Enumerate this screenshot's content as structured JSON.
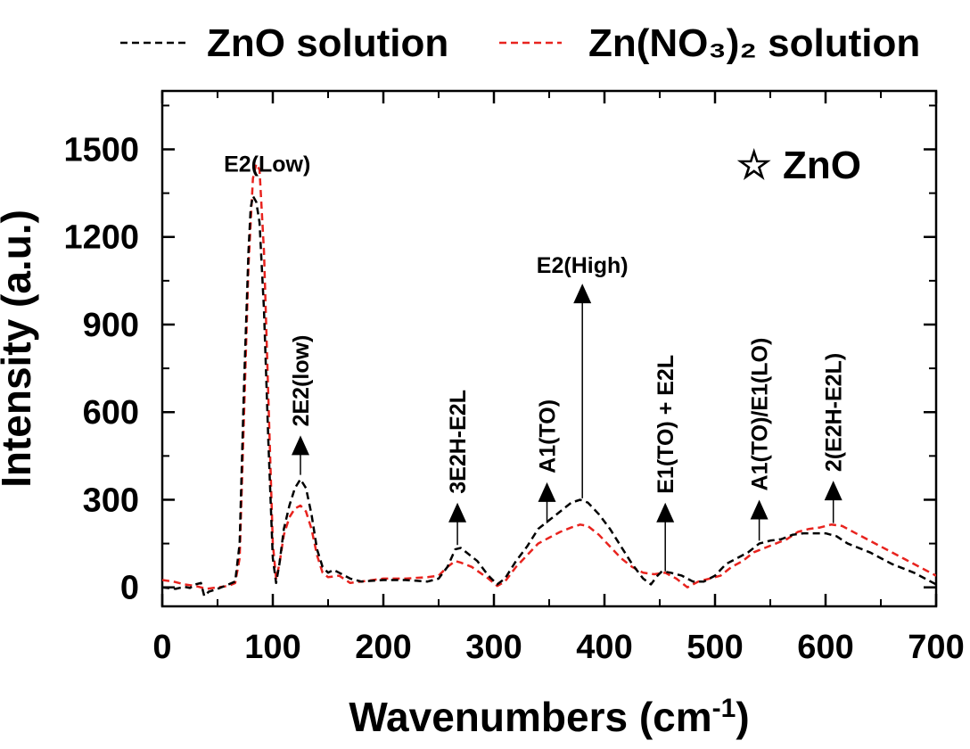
{
  "chart_data": {
    "type": "line",
    "xlabel": "Wavenumbers (cm",
    "xlabel_sup": "-1",
    "xlabel_end": ")",
    "ylabel": "Intensity (a.u.)",
    "xlim": [
      0,
      700
    ],
    "ylim": [
      -65,
      1700
    ],
    "x_ticks": [
      0,
      100,
      200,
      300,
      400,
      500,
      600,
      700
    ],
    "y_ticks": [
      0,
      300,
      600,
      900,
      1200,
      1500
    ],
    "x_tick_labels": [
      "0",
      "100",
      "200",
      "300",
      "400",
      "500",
      "600",
      "700"
    ],
    "y_tick_labels": [
      "0",
      "300",
      "600",
      "900",
      "1200",
      "1500"
    ],
    "legend_position": "top",
    "series": [
      {
        "name": "ZnO solution",
        "color": "#000000",
        "style": "dashed",
        "points": [
          [
            0,
            0
          ],
          [
            12,
            -5
          ],
          [
            20,
            2
          ],
          [
            25,
            -2
          ],
          [
            30,
            10
          ],
          [
            35,
            15
          ],
          [
            38,
            -30
          ],
          [
            42,
            -15
          ],
          [
            50,
            -5
          ],
          [
            60,
            10
          ],
          [
            66,
            20
          ],
          [
            70,
            150
          ],
          [
            74,
            700
          ],
          [
            78,
            1150
          ],
          [
            80,
            1300
          ],
          [
            82,
            1340
          ],
          [
            85,
            1320
          ],
          [
            88,
            1250
          ],
          [
            92,
            950
          ],
          [
            96,
            500
          ],
          [
            100,
            100
          ],
          [
            103,
            15
          ],
          [
            106,
            80
          ],
          [
            110,
            200
          ],
          [
            115,
            280
          ],
          [
            120,
            340
          ],
          [
            125,
            370
          ],
          [
            130,
            340
          ],
          [
            135,
            250
          ],
          [
            140,
            130
          ],
          [
            145,
            70
          ],
          [
            150,
            50
          ],
          [
            155,
            60
          ],
          [
            160,
            50
          ],
          [
            170,
            30
          ],
          [
            180,
            20
          ],
          [
            200,
            25
          ],
          [
            220,
            25
          ],
          [
            240,
            20
          ],
          [
            250,
            30
          ],
          [
            258,
            70
          ],
          [
            265,
            130
          ],
          [
            270,
            135
          ],
          [
            275,
            120
          ],
          [
            285,
            90
          ],
          [
            295,
            40
          ],
          [
            303,
            10
          ],
          [
            310,
            30
          ],
          [
            320,
            90
          ],
          [
            330,
            140
          ],
          [
            340,
            200
          ],
          [
            350,
            230
          ],
          [
            360,
            260
          ],
          [
            370,
            290
          ],
          [
            378,
            300
          ],
          [
            385,
            290
          ],
          [
            395,
            250
          ],
          [
            405,
            200
          ],
          [
            415,
            140
          ],
          [
            425,
            80
          ],
          [
            435,
            30
          ],
          [
            442,
            10
          ],
          [
            448,
            40
          ],
          [
            452,
            55
          ],
          [
            460,
            50
          ],
          [
            470,
            40
          ],
          [
            480,
            20
          ],
          [
            490,
            20
          ],
          [
            500,
            40
          ],
          [
            510,
            80
          ],
          [
            520,
            100
          ],
          [
            530,
            120
          ],
          [
            540,
            150
          ],
          [
            550,
            160
          ],
          [
            560,
            165
          ],
          [
            570,
            180
          ],
          [
            580,
            185
          ],
          [
            590,
            185
          ],
          [
            600,
            185
          ],
          [
            610,
            175
          ],
          [
            620,
            150
          ],
          [
            640,
            120
          ],
          [
            660,
            80
          ],
          [
            680,
            50
          ],
          [
            700,
            10
          ]
        ]
      },
      {
        "name": "Zn(NO₃)₂ solution",
        "color": "#e8231e",
        "style": "dashed",
        "points": [
          [
            0,
            25
          ],
          [
            10,
            20
          ],
          [
            20,
            10
          ],
          [
            30,
            5
          ],
          [
            40,
            -5
          ],
          [
            50,
            0
          ],
          [
            60,
            5
          ],
          [
            66,
            15
          ],
          [
            70,
            100
          ],
          [
            74,
            600
          ],
          [
            78,
            1100
          ],
          [
            82,
            1400
          ],
          [
            85,
            1450
          ],
          [
            88,
            1430
          ],
          [
            92,
            1150
          ],
          [
            96,
            650
          ],
          [
            100,
            150
          ],
          [
            103,
            30
          ],
          [
            106,
            80
          ],
          [
            110,
            180
          ],
          [
            115,
            240
          ],
          [
            120,
            270
          ],
          [
            125,
            280
          ],
          [
            130,
            260
          ],
          [
            135,
            200
          ],
          [
            140,
            110
          ],
          [
            145,
            50
          ],
          [
            150,
            35
          ],
          [
            160,
            40
          ],
          [
            170,
            15
          ],
          [
            180,
            20
          ],
          [
            200,
            30
          ],
          [
            220,
            30
          ],
          [
            240,
            35
          ],
          [
            250,
            40
          ],
          [
            258,
            70
          ],
          [
            265,
            90
          ],
          [
            270,
            85
          ],
          [
            280,
            70
          ],
          [
            295,
            30
          ],
          [
            303,
            5
          ],
          [
            310,
            20
          ],
          [
            320,
            70
          ],
          [
            330,
            110
          ],
          [
            340,
            150
          ],
          [
            350,
            170
          ],
          [
            360,
            190
          ],
          [
            370,
            205
          ],
          [
            378,
            215
          ],
          [
            385,
            210
          ],
          [
            395,
            180
          ],
          [
            405,
            140
          ],
          [
            415,
            100
          ],
          [
            425,
            70
          ],
          [
            435,
            50
          ],
          [
            445,
            45
          ],
          [
            455,
            50
          ],
          [
            465,
            30
          ],
          [
            475,
            0
          ],
          [
            485,
            20
          ],
          [
            495,
            30
          ],
          [
            505,
            40
          ],
          [
            515,
            70
          ],
          [
            525,
            90
          ],
          [
            535,
            120
          ],
          [
            545,
            135
          ],
          [
            555,
            150
          ],
          [
            565,
            165
          ],
          [
            575,
            190
          ],
          [
            585,
            200
          ],
          [
            595,
            205
          ],
          [
            605,
            215
          ],
          [
            615,
            210
          ],
          [
            630,
            180
          ],
          [
            650,
            140
          ],
          [
            670,
            100
          ],
          [
            690,
            60
          ],
          [
            700,
            40
          ]
        ]
      }
    ],
    "annotations": [
      {
        "label": "E2(Low)",
        "x": 82,
        "y": 1430,
        "rotated": false,
        "arrow": false
      },
      {
        "label": "2E2(low)",
        "x": 125,
        "rotated": true,
        "arrow": true,
        "arrow_top": 520,
        "arrow_bottom": 385
      },
      {
        "label": "3E2H-E2L",
        "x": 267,
        "rotated": true,
        "arrow": true,
        "arrow_top": 290,
        "arrow_bottom": 145
      },
      {
        "label": "A1(TO)",
        "x": 348,
        "rotated": true,
        "arrow": true,
        "arrow_top": 360,
        "arrow_bottom": 220
      },
      {
        "label": "E2(High)",
        "x": 380,
        "rotated": false,
        "arrow": true,
        "arrow_top": 1040,
        "arrow_bottom": 305
      },
      {
        "label": "E1(TO) + E2L",
        "x": 455,
        "rotated": true,
        "arrow": true,
        "arrow_top": 290,
        "arrow_bottom": 55
      },
      {
        "label": "A1(TO)/E1(LO)",
        "x": 540,
        "rotated": true,
        "arrow": true,
        "arrow_top": 300,
        "arrow_bottom": 160
      },
      {
        "label": "2(E2H-E2L)",
        "x": 607,
        "rotated": true,
        "arrow": true,
        "arrow_top": 365,
        "arrow_bottom": 220
      }
    ],
    "inset_legend": {
      "symbol": "☆",
      "label": "ZnO"
    }
  }
}
